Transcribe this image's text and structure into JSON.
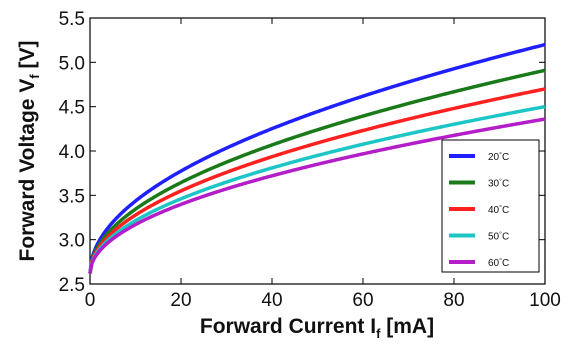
{
  "chart_data": {
    "type": "line",
    "title": "",
    "xlabel": {
      "main": "Forward Current I",
      "sub": "f",
      "rest": " [mA]"
    },
    "ylabel": {
      "main": "Forward Voltage V",
      "sub": "f",
      "rest": " [V]"
    },
    "xlim": [
      0,
      100
    ],
    "ylim": [
      2.5,
      5.5
    ],
    "xticks": [
      "0",
      "20",
      "40",
      "60",
      "80",
      "100"
    ],
    "yticks": [
      "2.5",
      "3.0",
      "3.5",
      "4.0",
      "4.5",
      "5.0",
      "5.5"
    ],
    "grid": false,
    "legend_position": "lower-right",
    "series": [
      {
        "name": "20",
        "unit": "°C",
        "color": "#1f1fff",
        "v0": 2.62,
        "k": 0.258,
        "x": [
          0,
          10,
          20,
          30,
          40,
          50,
          60,
          70,
          80,
          90,
          100
        ],
        "y": [
          2.62,
          3.44,
          3.77,
          4.03,
          4.25,
          4.44,
          4.62,
          4.78,
          4.93,
          5.07,
          5.2
        ]
      },
      {
        "name": "30",
        "unit": "°C",
        "color": "#1a7a1a",
        "v0": 2.62,
        "k": 0.229,
        "x": [
          0,
          10,
          20,
          30,
          40,
          50,
          60,
          70,
          80,
          90,
          100
        ],
        "y": [
          2.62,
          3.34,
          3.64,
          3.87,
          4.07,
          4.24,
          4.39,
          4.54,
          4.67,
          4.79,
          4.91
        ]
      },
      {
        "name": "40",
        "unit": "°C",
        "color": "#ff2020",
        "v0": 2.62,
        "k": 0.208,
        "x": [
          0,
          10,
          20,
          30,
          40,
          50,
          60,
          70,
          80,
          90,
          100
        ],
        "y": [
          2.62,
          3.28,
          3.55,
          3.76,
          3.93,
          4.09,
          4.23,
          4.36,
          4.48,
          4.59,
          4.7
        ]
      },
      {
        "name": "50",
        "unit": "°C",
        "color": "#1cc6c6",
        "v0": 2.62,
        "k": 0.188,
        "x": [
          0,
          10,
          20,
          30,
          40,
          50,
          60,
          70,
          80,
          90,
          100
        ],
        "y": [
          2.62,
          3.21,
          3.46,
          3.65,
          3.8,
          3.95,
          4.07,
          4.19,
          4.3,
          4.4,
          4.5
        ]
      },
      {
        "name": "60",
        "unit": "°C",
        "color": "#b31ec9",
        "v0": 2.62,
        "k": 0.174,
        "x": [
          0,
          10,
          20,
          30,
          40,
          50,
          60,
          70,
          80,
          90,
          100
        ],
        "y": [
          2.62,
          3.17,
          3.4,
          3.57,
          3.72,
          3.85,
          3.97,
          4.08,
          4.18,
          4.27,
          4.36
        ]
      }
    ]
  }
}
